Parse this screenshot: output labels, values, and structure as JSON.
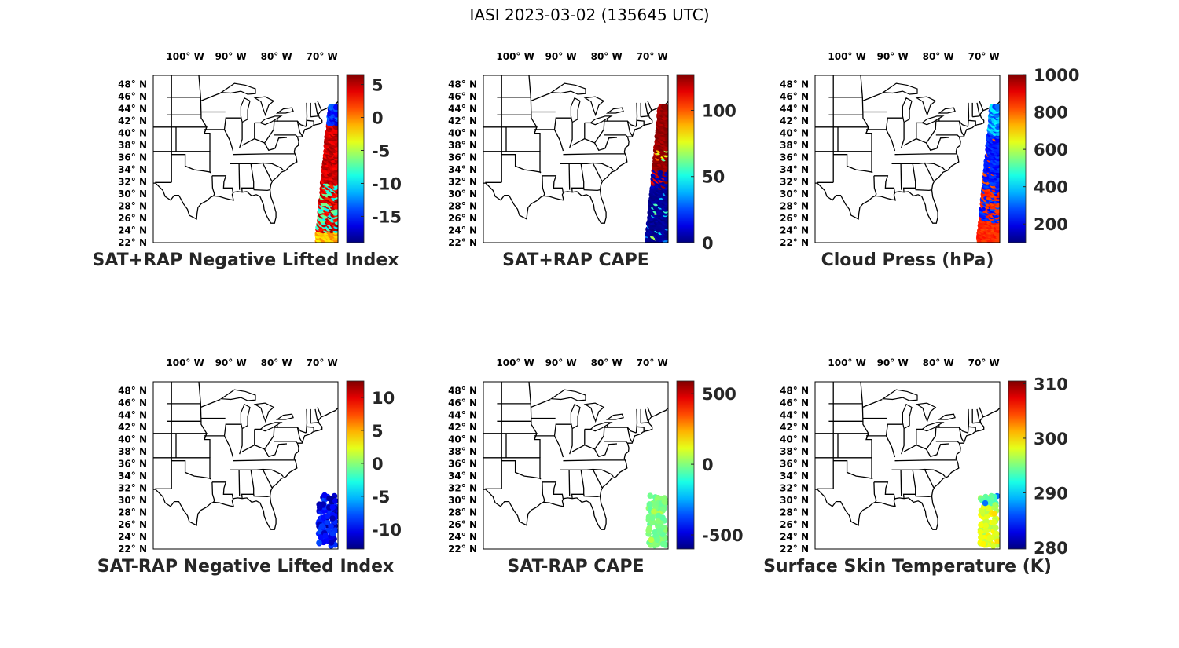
{
  "figure_title": "IASI 2023-03-02 (135645 UTC)",
  "lon_labels": [
    "100",
    "90",
    "80",
    "70"
  ],
  "lon_suffix": " W",
  "lat_labels": [
    "48",
    "46",
    "44",
    "42",
    "40",
    "38",
    "36",
    "34",
    "32",
    "30",
    "28",
    "26",
    "24",
    "22"
  ],
  "lat_suffix": " N",
  "map_extent": {
    "lon_min": -107,
    "lon_max": -66.5,
    "lat_min": 22,
    "lat_max": 49.5
  },
  "colormap": "jet",
  "panels": [
    {
      "title": "SAT+RAP Negative Lifted Index",
      "cmin": -19,
      "cmax": 6.5,
      "ticks": [
        "5",
        "0",
        "-5",
        "-10",
        "-15"
      ],
      "tick_values": [
        5,
        0,
        -5,
        -10,
        -15
      ],
      "swath": "full",
      "value_pattern": "nli_full"
    },
    {
      "title": "SAT+RAP CAPE",
      "cmin": 0,
      "cmax": 127,
      "ticks": [
        "100",
        "50",
        "0"
      ],
      "tick_values": [
        100,
        50,
        0
      ],
      "swath": "full",
      "value_pattern": "cape_full"
    },
    {
      "title": "Cloud Press (hPa)",
      "cmin": 100,
      "cmax": 1000,
      "ticks": [
        "1000",
        "800",
        "600",
        "400",
        "200"
      ],
      "tick_values": [
        1000,
        800,
        600,
        400,
        200
      ],
      "swath": "full",
      "value_pattern": "cloud"
    },
    {
      "title": "SAT-RAP Negative Lifted Index",
      "cmin": -13,
      "cmax": 12.5,
      "ticks": [
        "10",
        "5",
        "0",
        "-5",
        "-10"
      ],
      "tick_values": [
        10,
        5,
        0,
        -5,
        -10
      ],
      "swath": "south",
      "value_pattern": "nli_diff"
    },
    {
      "title": "SAT-RAP CAPE",
      "cmin": -600,
      "cmax": 590,
      "ticks": [
        "500",
        "0",
        "-500"
      ],
      "tick_values": [
        500,
        0,
        -500
      ],
      "swath": "south",
      "value_pattern": "cape_diff"
    },
    {
      "title": "Surface Skin Temperature (K)",
      "cmin": 279.7,
      "cmax": 310.5,
      "ticks": [
        "310",
        "300",
        "290",
        "280"
      ],
      "tick_values": [
        310,
        300,
        290,
        280
      ],
      "swath": "south",
      "value_pattern": "skin"
    }
  ]
}
